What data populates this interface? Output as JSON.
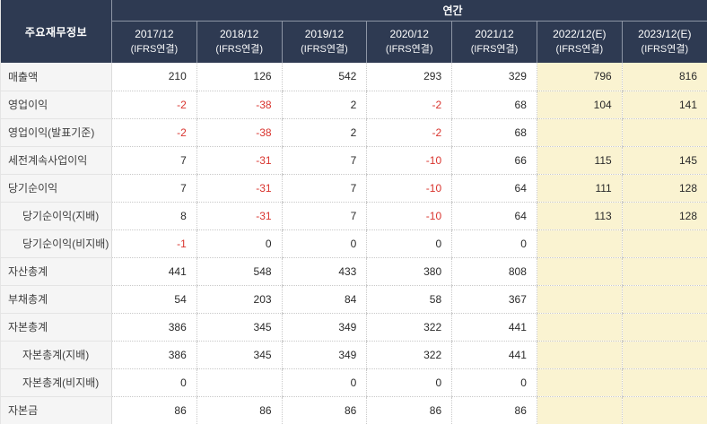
{
  "table": {
    "corner_header": "주요재무정보",
    "group_header": "연간",
    "columns": [
      {
        "year": "2017/12",
        "basis": "(IFRS연결)",
        "estimate": false
      },
      {
        "year": "2018/12",
        "basis": "(IFRS연결)",
        "estimate": false
      },
      {
        "year": "2019/12",
        "basis": "(IFRS연결)",
        "estimate": false
      },
      {
        "year": "2020/12",
        "basis": "(IFRS연결)",
        "estimate": false
      },
      {
        "year": "2021/12",
        "basis": "(IFRS연결)",
        "estimate": false
      },
      {
        "year": "2022/12(E)",
        "basis": "(IFRS연결)",
        "estimate": true
      },
      {
        "year": "2023/12(E)",
        "basis": "(IFRS연결)",
        "estimate": true
      }
    ],
    "rows": [
      {
        "label": "매출액",
        "indent": false,
        "values": [
          "210",
          "126",
          "542",
          "293",
          "329",
          "796",
          "816"
        ]
      },
      {
        "label": "영업이익",
        "indent": false,
        "values": [
          "-2",
          "-38",
          "2",
          "-2",
          "68",
          "104",
          "141"
        ]
      },
      {
        "label": "영업이익(발표기준)",
        "indent": false,
        "values": [
          "-2",
          "-38",
          "2",
          "-2",
          "68",
          "",
          ""
        ]
      },
      {
        "label": "세전계속사업이익",
        "indent": false,
        "values": [
          "7",
          "-31",
          "7",
          "-10",
          "66",
          "115",
          "145"
        ]
      },
      {
        "label": "당기순이익",
        "indent": false,
        "values": [
          "7",
          "-31",
          "7",
          "-10",
          "64",
          "111",
          "128"
        ]
      },
      {
        "label": "당기순이익(지배)",
        "indent": true,
        "values": [
          "8",
          "-31",
          "7",
          "-10",
          "64",
          "113",
          "128"
        ]
      },
      {
        "label": "당기순이익(비지배)",
        "indent": true,
        "values": [
          "-1",
          "0",
          "0",
          "0",
          "0",
          "",
          ""
        ]
      },
      {
        "label": "자산총계",
        "indent": false,
        "values": [
          "441",
          "548",
          "433",
          "380",
          "808",
          "",
          ""
        ]
      },
      {
        "label": "부채총계",
        "indent": false,
        "values": [
          "54",
          "203",
          "84",
          "58",
          "367",
          "",
          ""
        ]
      },
      {
        "label": "자본총계",
        "indent": false,
        "values": [
          "386",
          "345",
          "349",
          "322",
          "441",
          "",
          ""
        ]
      },
      {
        "label": "자본총계(지배)",
        "indent": true,
        "values": [
          "386",
          "345",
          "349",
          "322",
          "441",
          "",
          ""
        ]
      },
      {
        "label": "자본총계(비지배)",
        "indent": true,
        "values": [
          "0",
          "",
          "0",
          "0",
          "0",
          "",
          ""
        ]
      },
      {
        "label": "자본금",
        "indent": false,
        "values": [
          "86",
          "86",
          "86",
          "86",
          "86",
          "",
          ""
        ]
      }
    ],
    "colors": {
      "header_bg": "#2e3a52",
      "header_text": "#ffffff",
      "header_divider": "#8d95a5",
      "estimate_bg": "#faf3d1",
      "negative_text": "#d9342e",
      "value_text": "#2a2a2a",
      "label_text": "#3d3d3d",
      "label_bg": "#f5f5f5",
      "grid_dotted": "#c9c9c9",
      "grid_solid": "#e4e4e4"
    }
  }
}
